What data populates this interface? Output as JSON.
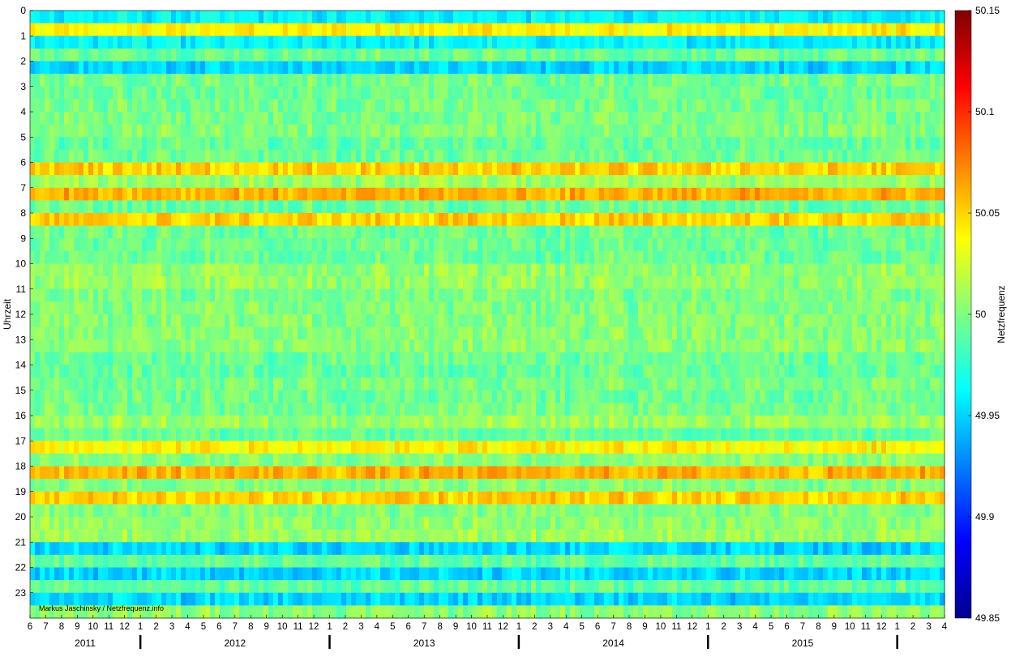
{
  "chart_data": {
    "type": "heatmap",
    "title": "",
    "ylabel": "Uhrzeit",
    "colorbar_label": "Netzfrequenz",
    "colormap": "jet",
    "color_range": [
      49.85,
      50.15
    ],
    "colorbar_ticks": [
      "50.15",
      "50.1",
      "50.05",
      "50",
      "49.95",
      "49.9",
      "49.85"
    ],
    "y_ticks": [
      "0",
      "1",
      "2",
      "3",
      "4",
      "5",
      "6",
      "7",
      "8",
      "9",
      "10",
      "11",
      "12",
      "13",
      "14",
      "15",
      "16",
      "17",
      "18",
      "19",
      "20",
      "21",
      "22",
      "23"
    ],
    "x_month_ticks": [
      "6",
      "7",
      "8",
      "9",
      "10",
      "11",
      "12",
      "1",
      "2",
      "3",
      "4",
      "5",
      "6",
      "7",
      "8",
      "9",
      "10",
      "11",
      "12",
      "1",
      "2",
      "3",
      "4",
      "5",
      "6",
      "7",
      "8",
      "9",
      "10",
      "11",
      "12",
      "1",
      "2",
      "3",
      "4",
      "5",
      "6",
      "7",
      "8",
      "9",
      "10",
      "11",
      "12",
      "1",
      "2",
      "3",
      "4",
      "5",
      "6",
      "7",
      "8",
      "9",
      "10",
      "11",
      "12",
      "1",
      "2",
      "3",
      "4"
    ],
    "years": [
      "2011",
      "2012",
      "2013",
      "2014",
      "2015"
    ],
    "period": {
      "start": "2011-06",
      "end": "2016-04"
    },
    "base_frequency": 50.0,
    "hour_features": [
      {
        "hour": 0,
        "value": 49.96
      },
      {
        "hour": 0.5,
        "value": 50.04
      },
      {
        "hour": 1,
        "value": 49.96
      },
      {
        "hour": 2,
        "value": 49.95
      },
      {
        "hour": 6,
        "value": 50.05
      },
      {
        "hour": 7,
        "value": 50.06
      },
      {
        "hour": 8,
        "value": 50.05
      },
      {
        "hour": 17,
        "value": 50.04
      },
      {
        "hour": 18,
        "value": 50.06
      },
      {
        "hour": 19,
        "value": 50.05
      },
      {
        "hour": 21,
        "value": 49.95
      },
      {
        "hour": 22,
        "value": 49.95
      },
      {
        "hour": 23,
        "value": 49.95
      }
    ],
    "annotation": "Markus Jaschinsky / Netzfrequenz.info"
  }
}
